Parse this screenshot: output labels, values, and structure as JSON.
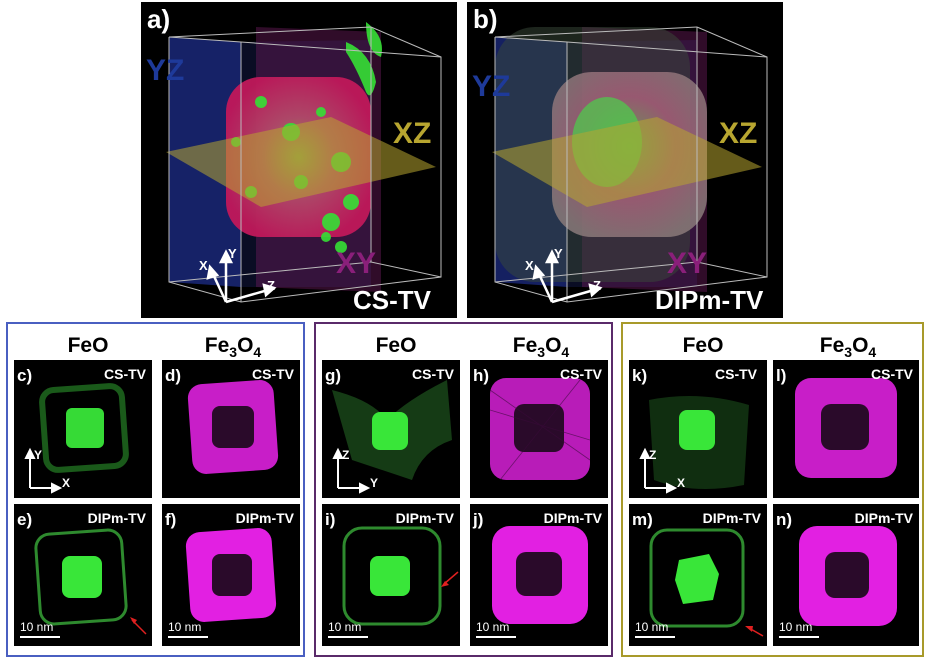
{
  "panels_top": [
    {
      "letter": "a)",
      "method": "CS-TV",
      "planes": {
        "yz": "YZ",
        "xz": "XZ",
        "xy": "XY"
      },
      "axes": {
        "x": "X",
        "y": "Y",
        "z": "Z"
      }
    },
    {
      "letter": "b)",
      "method": "DIPm-TV",
      "planes": {
        "yz": "YZ",
        "xz": "XZ",
        "xy": "XY"
      },
      "axes": {
        "x": "X",
        "y": "Y",
        "z": "Z"
      }
    }
  ],
  "groups": [
    {
      "border_color": "#4a5fc1",
      "headers": {
        "feo": "FeO",
        "fe3o4_main": "Fe",
        "fe3o4_sub1": "3",
        "fe3o4_mid": "O",
        "fe3o4_sub2": "4"
      },
      "tiles": [
        {
          "letter": "c)",
          "method": "CS-TV"
        },
        {
          "letter": "d)",
          "method": "CS-TV"
        },
        {
          "letter": "e)",
          "method": "DIPm-TV"
        },
        {
          "letter": "f)",
          "method": "DIPm-TV"
        }
      ],
      "axes": {
        "vertical": "Y",
        "horizontal": "X"
      },
      "scale": "10 nm"
    },
    {
      "border_color": "#5a2a6a",
      "headers": {
        "feo": "FeO",
        "fe3o4_main": "Fe",
        "fe3o4_sub1": "3",
        "fe3o4_mid": "O",
        "fe3o4_sub2": "4"
      },
      "tiles": [
        {
          "letter": "g)",
          "method": "CS-TV"
        },
        {
          "letter": "h)",
          "method": "CS-TV"
        },
        {
          "letter": "i)",
          "method": "DIPm-TV"
        },
        {
          "letter": "j)",
          "method": "DIPm-TV"
        }
      ],
      "axes": {
        "vertical": "Z",
        "horizontal": "Y"
      },
      "scale": "10 nm"
    },
    {
      "border_color": "#a89a2a",
      "headers": {
        "feo": "FeO",
        "fe3o4_main": "Fe",
        "fe3o4_sub1": "3",
        "fe3o4_mid": "O",
        "fe3o4_sub2": "4"
      },
      "tiles": [
        {
          "letter": "k)",
          "method": "CS-TV"
        },
        {
          "letter": "l)",
          "method": "CS-TV"
        },
        {
          "letter": "m)",
          "method": "DIPm-TV"
        },
        {
          "letter": "n)",
          "method": "DIPm-TV"
        }
      ],
      "axes": {
        "vertical": "Z",
        "horizontal": "X"
      },
      "scale": "10 nm"
    }
  ],
  "colors": {
    "feo": "#2bd42b",
    "fe3o4": "#d41ad4",
    "yz_plane": "#2a3a9a",
    "xz_plane": "#b8a630",
    "xy_plane": "#8a1f7a"
  }
}
